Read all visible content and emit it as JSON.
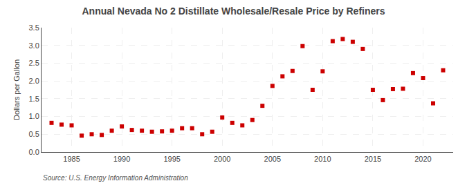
{
  "chart_data": {
    "type": "scatter",
    "title": "Annual Nevada No 2 Distillate Wholesale/Resale Price by Refiners",
    "ylabel": "Dollars per Gallon",
    "annotations": [
      "Source: U.S. Energy Information Administration"
    ],
    "x": [
      1983,
      1984,
      1985,
      1986,
      1987,
      1988,
      1989,
      1990,
      1991,
      1992,
      1993,
      1994,
      1995,
      1996,
      1997,
      1998,
      1999,
      2000,
      2001,
      2002,
      2003,
      2004,
      2005,
      2006,
      2007,
      2008,
      2009,
      2010,
      2011,
      2012,
      2013,
      2014,
      2015,
      2016,
      2017,
      2018,
      2019,
      2020,
      2021,
      2022
    ],
    "values": [
      0.82,
      0.77,
      0.75,
      0.46,
      0.5,
      0.48,
      0.6,
      0.72,
      0.62,
      0.6,
      0.57,
      0.58,
      0.6,
      0.67,
      0.67,
      0.5,
      0.57,
      0.97,
      0.82,
      0.75,
      0.9,
      1.3,
      1.86,
      2.13,
      2.28,
      2.98,
      1.75,
      2.27,
      3.12,
      3.18,
      3.1,
      2.9,
      1.75,
      1.46,
      1.77,
      1.78,
      2.22,
      2.08,
      1.37,
      2.3
    ],
    "color": "#cc0000",
    "marker": "square",
    "xlim": [
      1982,
      2023
    ],
    "ylim": [
      0.0,
      3.5
    ],
    "xticks": [
      1985,
      1990,
      1995,
      2000,
      2005,
      2010,
      2015,
      2020
    ],
    "yticks": [
      {
        "value": 0,
        "label": "0.0"
      },
      0.5,
      {
        "value": 1,
        "label": "1.0"
      },
      1.5,
      {
        "value": 2,
        "label": "2.0"
      },
      2.5,
      {
        "value": 3,
        "label": "3.0"
      },
      3.5
    ],
    "grid": true
  }
}
